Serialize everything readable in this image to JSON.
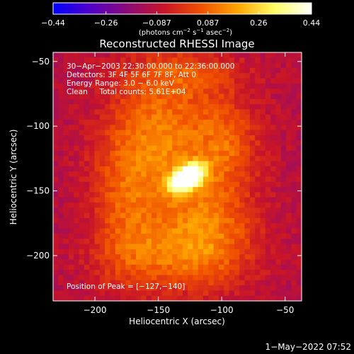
{
  "chart_data": {
    "type": "heatmap",
    "title": "Reconstructed RHESSI Image",
    "xlabel": "Heliocentric X (arcsec)",
    "ylabel": "Heliocentric Y (arcsec)",
    "xlim": [
      -233,
      -37
    ],
    "ylim": [
      -235,
      -43
    ],
    "xticks": [
      -200,
      -150,
      -100,
      -50
    ],
    "xtick_labels": [
      "−200",
      "−150",
      "−100",
      "−50"
    ],
    "yticks": [
      -50,
      -100,
      -150,
      -200
    ],
    "ytick_labels": [
      "−50",
      "−100",
      "−150",
      "−200"
    ],
    "colorbar": {
      "range": [
        -0.44,
        0.44
      ],
      "ticks": [
        -0.44,
        -0.26,
        -0.087,
        0.087,
        0.26,
        0.44
      ],
      "tick_labels": [
        "−0.44",
        "−0.26",
        "−0.087",
        "0.087",
        "0.26",
        "0.44"
      ],
      "unit_label_pre": "(photons cm",
      "unit_exp1": "−2",
      "unit_mid": " s",
      "unit_exp2": "−1",
      "unit_mid2": " asec",
      "unit_exp3": "−2",
      "unit_post": ")",
      "colors": [
        "#0000ff",
        "#5000c8",
        "#8c0a78",
        "#c81428",
        "#f05000",
        "#ffa500",
        "#ffff64",
        "#ffffff"
      ]
    },
    "annotations": [
      "30−Apr−2003 22:30:00.000 to 22:36:00.000",
      "Detectors: 3F 4F 5F 6F 7F 8F, Att 0",
      "Energy Range: 3.0 − 6.0 keV",
      "Clean     Total counts: 5.61E+04"
    ],
    "peak_label": "Position of Peak = [−127,−140]",
    "peak": {
      "x": -127,
      "y": -140,
      "value": 0.44
    },
    "background_level": -0.1,
    "emission_components": [
      {
        "x": -127,
        "y": -140,
        "sx": 10,
        "sy": 6,
        "rot": 30,
        "amp": 0.62
      },
      {
        "x": -145,
        "y": -105,
        "sx": 28,
        "sy": 40,
        "rot": 0,
        "amp": 0.2
      },
      {
        "x": -110,
        "y": -175,
        "sx": 26,
        "sy": 32,
        "rot": 0,
        "amp": 0.19
      },
      {
        "x": -175,
        "y": -160,
        "sx": 20,
        "sy": 45,
        "rot": 0,
        "amp": 0.15
      },
      {
        "x": -95,
        "y": -110,
        "sx": 18,
        "sy": 22,
        "rot": 0,
        "amp": 0.14
      },
      {
        "x": -140,
        "y": -200,
        "sx": 35,
        "sy": 18,
        "rot": 0,
        "amp": 0.14
      },
      {
        "x": -120,
        "y": -60,
        "sx": 30,
        "sy": 12,
        "rot": 0,
        "amp": 0.1
      }
    ],
    "timestamp": "1−May−2022 07:52"
  }
}
